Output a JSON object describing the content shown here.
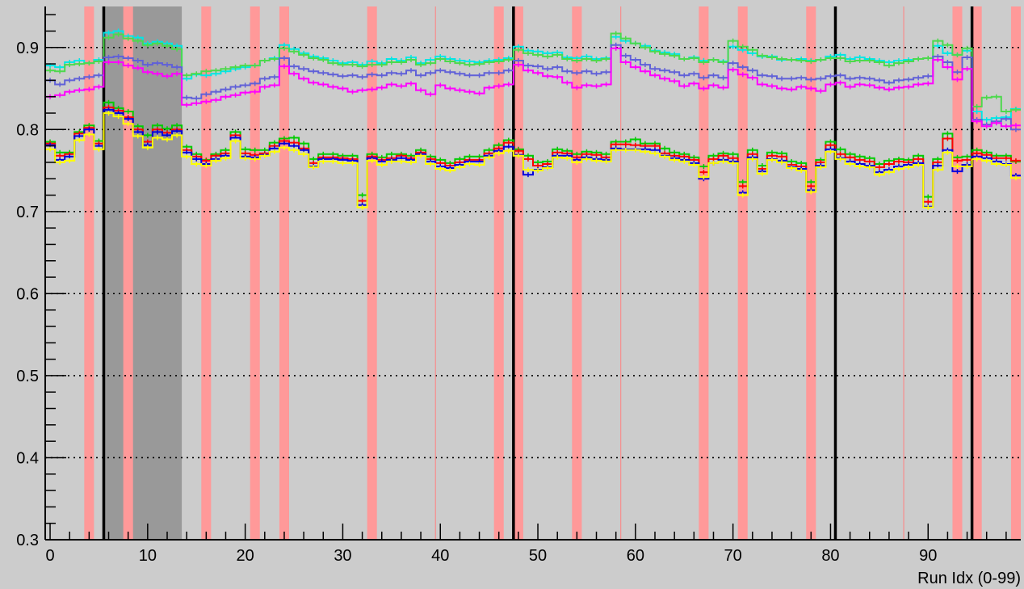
{
  "chart_data": {
    "type": "line",
    "xlabel": "Run Idx (0-99)",
    "ylabel": "",
    "xlim": [
      -0.5,
      99.5
    ],
    "ylim": [
      0.3,
      0.95
    ],
    "x_ticks": [
      0,
      10,
      20,
      30,
      40,
      50,
      60,
      70,
      80,
      90
    ],
    "x_tick_labels": [
      "0",
      "10",
      "20",
      "30",
      "40",
      "50",
      "60",
      "70",
      "80",
      "90"
    ],
    "y_ticks": [
      0.3,
      0.4,
      0.5,
      0.6,
      0.7,
      0.8,
      0.9
    ],
    "y_tick_labels": [
      "0.3",
      "0.4",
      "0.5",
      "0.6",
      "0.7",
      "0.8",
      "0.9"
    ],
    "grid": "horizontal dotted at 0.4-0.9",
    "background_color": "#cccccc",
    "gray_band": [
      5.5,
      13.5
    ],
    "gray_band_light": [
      7.5,
      8.5
    ],
    "red_bands": [
      [
        3.5,
        4.5
      ],
      [
        7.5,
        8.5
      ],
      [
        15.5,
        16.5
      ],
      [
        20.5,
        21.5
      ],
      [
        23.5,
        24.5
      ],
      [
        32.5,
        33.5
      ],
      [
        45.5,
        46.5
      ],
      [
        47.5,
        48.5
      ],
      [
        53.5,
        54.5
      ],
      [
        66.5,
        67.5
      ],
      [
        70.5,
        71.5
      ],
      [
        77.5,
        78.5
      ],
      [
        92.5,
        93.5
      ],
      [
        94.5,
        95.5
      ],
      [
        98.5,
        99.5
      ]
    ],
    "thin_red_lines": [
      39.5,
      58.5,
      87.5
    ],
    "black_lines": [
      5.5,
      47.5,
      80.5,
      94.5
    ],
    "series": [
      {
        "color": "#00e6e6",
        "values": [
          0.878,
          0.876,
          0.882,
          0.884,
          0.881,
          0.885,
          0.918,
          0.92,
          0.914,
          0.912,
          0.905,
          0.907,
          0.905,
          0.902,
          0.862,
          0.867,
          0.866,
          0.868,
          0.871,
          0.874,
          0.876,
          0.878,
          0.884,
          0.887,
          0.903,
          0.898,
          0.893,
          0.889,
          0.887,
          0.884,
          0.881,
          0.882,
          0.879,
          0.883,
          0.881,
          0.886,
          0.884,
          0.888,
          0.881,
          0.885,
          0.889,
          0.886,
          0.884,
          0.883,
          0.882,
          0.884,
          0.885,
          0.887,
          0.901,
          0.896,
          0.895,
          0.893,
          0.894,
          0.888,
          0.887,
          0.889,
          0.886,
          0.887,
          0.913,
          0.908,
          0.905,
          0.902,
          0.896,
          0.894,
          0.892,
          0.886,
          0.888,
          0.884,
          0.885,
          0.883,
          0.901,
          0.897,
          0.893,
          0.889,
          0.889,
          0.885,
          0.885,
          0.886,
          0.884,
          0.885,
          0.889,
          0.891,
          0.886,
          0.888,
          0.886,
          0.884,
          0.882,
          0.884,
          0.885,
          0.886,
          0.887,
          0.902,
          0.893,
          0.891,
          0.896,
          0.822,
          0.812,
          0.814,
          0.815,
          0.825
        ]
      },
      {
        "color": "#4cd94c",
        "values": [
          0.872,
          0.871,
          0.879,
          0.88,
          0.881,
          0.883,
          0.912,
          0.916,
          0.911,
          0.908,
          0.903,
          0.905,
          0.902,
          0.898,
          0.866,
          0.868,
          0.871,
          0.872,
          0.874,
          0.876,
          0.878,
          0.878,
          0.884,
          0.886,
          0.899,
          0.895,
          0.891,
          0.887,
          0.885,
          0.881,
          0.879,
          0.879,
          0.877,
          0.879,
          0.879,
          0.882,
          0.882,
          0.885,
          0.879,
          0.881,
          0.886,
          0.883,
          0.881,
          0.879,
          0.88,
          0.882,
          0.883,
          0.885,
          0.897,
          0.893,
          0.891,
          0.889,
          0.891,
          0.886,
          0.884,
          0.886,
          0.884,
          0.886,
          0.917,
          0.911,
          0.905,
          0.9,
          0.895,
          0.892,
          0.89,
          0.886,
          0.887,
          0.882,
          0.885,
          0.882,
          0.908,
          0.901,
          0.897,
          0.89,
          0.888,
          0.886,
          0.885,
          0.884,
          0.883,
          0.885,
          0.887,
          0.887,
          0.883,
          0.884,
          0.884,
          0.882,
          0.878,
          0.881,
          0.883,
          0.886,
          0.887,
          0.908,
          0.903,
          0.891,
          0.899,
          0.828,
          0.839,
          0.84,
          0.822,
          0.824
        ]
      },
      {
        "color": "#6060d8",
        "values": [
          0.86,
          0.855,
          0.86,
          0.862,
          0.864,
          0.866,
          0.888,
          0.889,
          0.887,
          0.884,
          0.879,
          0.881,
          0.879,
          0.876,
          0.839,
          0.838,
          0.843,
          0.846,
          0.849,
          0.852,
          0.854,
          0.856,
          0.862,
          0.864,
          0.887,
          0.877,
          0.874,
          0.871,
          0.869,
          0.867,
          0.865,
          0.866,
          0.864,
          0.867,
          0.866,
          0.869,
          0.868,
          0.872,
          0.866,
          0.869,
          0.872,
          0.87,
          0.868,
          0.866,
          0.866,
          0.869,
          0.869,
          0.872,
          0.884,
          0.878,
          0.877,
          0.874,
          0.876,
          0.871,
          0.869,
          0.871,
          0.868,
          0.87,
          0.903,
          0.89,
          0.885,
          0.879,
          0.874,
          0.872,
          0.87,
          0.866,
          0.868,
          0.863,
          0.866,
          0.863,
          0.881,
          0.876,
          0.872,
          0.866,
          0.865,
          0.862,
          0.862,
          0.863,
          0.861,
          0.862,
          0.865,
          0.866,
          0.862,
          0.863,
          0.862,
          0.86,
          0.857,
          0.86,
          0.861,
          0.863,
          0.865,
          0.889,
          0.882,
          0.87,
          0.888,
          0.812,
          0.806,
          0.81,
          0.813,
          0.8
        ]
      },
      {
        "color": "#ff00ff",
        "values": [
          0.84,
          0.842,
          0.846,
          0.848,
          0.849,
          0.852,
          0.882,
          0.882,
          0.878,
          0.875,
          0.87,
          0.868,
          0.865,
          0.868,
          0.83,
          0.832,
          0.834,
          0.836,
          0.84,
          0.842,
          0.845,
          0.846,
          0.852,
          0.854,
          0.877,
          0.868,
          0.862,
          0.857,
          0.855,
          0.852,
          0.85,
          0.846,
          0.848,
          0.849,
          0.851,
          0.855,
          0.853,
          0.856,
          0.848,
          0.843,
          0.854,
          0.85,
          0.848,
          0.846,
          0.844,
          0.851,
          0.853,
          0.855,
          0.879,
          0.872,
          0.869,
          0.865,
          0.864,
          0.857,
          0.851,
          0.854,
          0.853,
          0.855,
          0.899,
          0.882,
          0.876,
          0.871,
          0.866,
          0.862,
          0.859,
          0.853,
          0.856,
          0.85,
          0.854,
          0.851,
          0.873,
          0.867,
          0.863,
          0.855,
          0.853,
          0.85,
          0.849,
          0.852,
          0.85,
          0.847,
          0.855,
          0.857,
          0.852,
          0.855,
          0.854,
          0.851,
          0.849,
          0.851,
          0.852,
          0.855,
          0.856,
          0.885,
          0.876,
          0.861,
          0.874,
          0.81,
          0.804,
          0.808,
          0.804,
          0.805
        ]
      },
      {
        "color": "#00cc00",
        "values": [
          0.785,
          0.772,
          0.772,
          0.797,
          0.805,
          0.786,
          0.833,
          0.826,
          0.822,
          0.804,
          0.793,
          0.805,
          0.801,
          0.805,
          0.779,
          0.77,
          0.763,
          0.77,
          0.775,
          0.797,
          0.776,
          0.775,
          0.775,
          0.784,
          0.789,
          0.79,
          0.783,
          0.764,
          0.77,
          0.77,
          0.768,
          0.768,
          0.72,
          0.77,
          0.766,
          0.77,
          0.77,
          0.768,
          0.775,
          0.767,
          0.763,
          0.759,
          0.764,
          0.767,
          0.767,
          0.775,
          0.781,
          0.787,
          0.776,
          0.768,
          0.76,
          0.761,
          0.776,
          0.774,
          0.77,
          0.773,
          0.772,
          0.77,
          0.785,
          0.785,
          0.788,
          0.783,
          0.783,
          0.777,
          0.772,
          0.77,
          0.766,
          0.755,
          0.768,
          0.771,
          0.77,
          0.736,
          0.775,
          0.756,
          0.772,
          0.771,
          0.761,
          0.759,
          0.736,
          0.763,
          0.785,
          0.776,
          0.77,
          0.767,
          0.765,
          0.758,
          0.762,
          0.764,
          0.763,
          0.768,
          0.718,
          0.764,
          0.795,
          0.766,
          0.767,
          0.775,
          0.772,
          0.768,
          0.768,
          0.761
        ]
      },
      {
        "color": "#ff0000",
        "values": [
          0.783,
          0.768,
          0.77,
          0.795,
          0.802,
          0.783,
          0.827,
          0.823,
          0.815,
          0.8,
          0.785,
          0.8,
          0.796,
          0.8,
          0.775,
          0.767,
          0.762,
          0.768,
          0.771,
          0.793,
          0.771,
          0.769,
          0.771,
          0.78,
          0.786,
          0.784,
          0.777,
          0.759,
          0.766,
          0.766,
          0.765,
          0.764,
          0.713,
          0.767,
          0.763,
          0.765,
          0.768,
          0.765,
          0.772,
          0.764,
          0.759,
          0.756,
          0.76,
          0.763,
          0.763,
          0.771,
          0.777,
          0.784,
          0.774,
          0.764,
          0.756,
          0.758,
          0.772,
          0.771,
          0.766,
          0.77,
          0.769,
          0.766,
          0.782,
          0.782,
          0.781,
          0.78,
          0.78,
          0.771,
          0.768,
          0.767,
          0.763,
          0.748,
          0.764,
          0.768,
          0.765,
          0.731,
          0.77,
          0.752,
          0.768,
          0.767,
          0.757,
          0.755,
          0.731,
          0.76,
          0.781,
          0.77,
          0.766,
          0.763,
          0.761,
          0.754,
          0.758,
          0.761,
          0.76,
          0.764,
          0.712,
          0.76,
          0.789,
          0.762,
          0.763,
          0.771,
          0.769,
          0.765,
          0.765,
          0.762
        ]
      },
      {
        "color": "#0000dd",
        "values": [
          0.781,
          0.763,
          0.767,
          0.792,
          0.8,
          0.78,
          0.824,
          0.82,
          0.813,
          0.797,
          0.781,
          0.797,
          0.793,
          0.798,
          0.772,
          0.764,
          0.758,
          0.764,
          0.768,
          0.79,
          0.767,
          0.766,
          0.769,
          0.777,
          0.783,
          0.78,
          0.775,
          0.755,
          0.764,
          0.764,
          0.763,
          0.762,
          0.708,
          0.765,
          0.761,
          0.763,
          0.765,
          0.763,
          0.77,
          0.761,
          0.755,
          0.753,
          0.757,
          0.761,
          0.761,
          0.768,
          0.774,
          0.779,
          0.769,
          0.745,
          0.751,
          0.754,
          0.768,
          0.768,
          0.763,
          0.766,
          0.764,
          0.763,
          0.777,
          0.776,
          0.776,
          0.776,
          0.775,
          0.768,
          0.765,
          0.763,
          0.759,
          0.74,
          0.759,
          0.763,
          0.761,
          0.723,
          0.766,
          0.749,
          0.764,
          0.762,
          0.754,
          0.752,
          0.726,
          0.756,
          0.776,
          0.765,
          0.761,
          0.758,
          0.756,
          0.748,
          0.751,
          0.755,
          0.757,
          0.759,
          0.706,
          0.756,
          0.775,
          0.749,
          0.757,
          0.767,
          0.765,
          0.761,
          0.758,
          0.744
        ]
      },
      {
        "color": "#ffff00",
        "values": [
          0.776,
          0.76,
          0.762,
          0.787,
          0.794,
          0.776,
          0.82,
          0.816,
          0.807,
          0.792,
          0.778,
          0.79,
          0.788,
          0.793,
          0.767,
          0.758,
          0.756,
          0.762,
          0.765,
          0.786,
          0.765,
          0.764,
          0.768,
          0.773,
          0.778,
          0.775,
          0.77,
          0.754,
          0.761,
          0.761,
          0.759,
          0.759,
          0.705,
          0.762,
          0.757,
          0.761,
          0.761,
          0.76,
          0.768,
          0.758,
          0.752,
          0.75,
          0.754,
          0.758,
          0.757,
          0.766,
          0.771,
          0.774,
          0.768,
          0.751,
          0.75,
          0.753,
          0.766,
          0.765,
          0.76,
          0.764,
          0.762,
          0.761,
          0.775,
          0.775,
          0.775,
          0.773,
          0.771,
          0.767,
          0.763,
          0.761,
          0.757,
          0.742,
          0.759,
          0.761,
          0.759,
          0.72,
          0.764,
          0.746,
          0.763,
          0.76,
          0.753,
          0.75,
          0.724,
          0.754,
          0.773,
          0.764,
          0.758,
          0.755,
          0.754,
          0.745,
          0.748,
          0.752,
          0.754,
          0.757,
          0.705,
          0.751,
          0.772,
          0.755,
          0.755,
          0.764,
          0.762,
          0.758,
          0.757,
          0.741
        ]
      }
    ]
  }
}
